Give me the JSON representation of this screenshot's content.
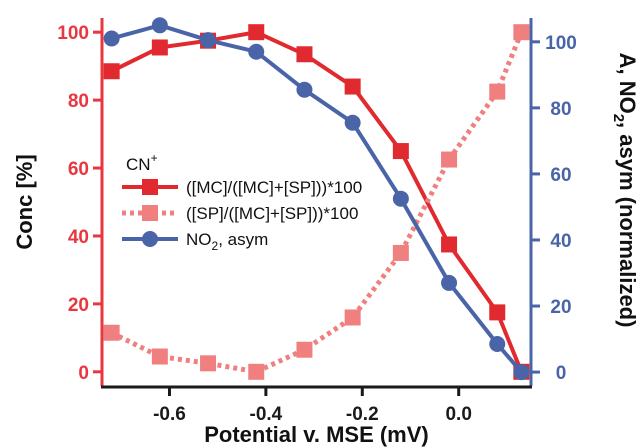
{
  "chart_data": {
    "type": "line",
    "title": "",
    "xlabel": "Potential v. MSE (mV)",
    "ylabel_left": "Conc [%]",
    "ylabel_right_parts": [
      "A, NO",
      "2",
      ", asym (normalized)"
    ],
    "xlim": [
      -0.74,
      0.15
    ],
    "ylim_left": [
      -3,
      103
    ],
    "ylim_right": [
      -3,
      106
    ],
    "x_ticks": [
      -0.6,
      -0.4,
      -0.2,
      0.0
    ],
    "x_tick_labels": [
      "-0.6",
      "-0.4",
      "-0.2",
      "0.0"
    ],
    "y_left_ticks": [
      0,
      20,
      40,
      60,
      80,
      100
    ],
    "y_left_tick_labels": [
      "0",
      "20",
      "40",
      "60",
      "80",
      "100"
    ],
    "y_right_ticks": [
      0,
      20,
      40,
      60,
      80,
      100
    ],
    "y_right_tick_labels": [
      "0",
      "20",
      "40",
      "60",
      "80",
      "100"
    ],
    "grid": false,
    "legend": {
      "placement": "center-left",
      "title": "CN",
      "title_sup": "+"
    },
    "colors": {
      "left_axis": "#e8373f",
      "right_axis": "#4a64a8",
      "mc": "#e02a2f",
      "sp": "#f08080",
      "no2": "#4a64a8"
    },
    "series": [
      {
        "name": "([MC]/([MC]+[SP]))*100",
        "legend_parts": [
          "([MC]/([MC]+[SP]))*100"
        ],
        "axis": "left",
        "style": "solid",
        "marker": "square",
        "color": "#e02a2f",
        "x": [
          -0.72,
          -0.62,
          -0.52,
          -0.42,
          -0.32,
          -0.22,
          -0.12,
          -0.02,
          0.08,
          0.13
        ],
        "values": [
          88.5,
          95.5,
          97.5,
          100,
          93.5,
          84,
          65,
          37.5,
          17.5,
          0
        ]
      },
      {
        "name": "([SP]/([MC]+[SP]))*100",
        "legend_parts": [
          "([SP]/([MC]+[SP]))*100"
        ],
        "axis": "left",
        "style": "dotted",
        "marker": "square",
        "color": "#f08080",
        "x": [
          -0.72,
          -0.62,
          -0.52,
          -0.42,
          -0.32,
          -0.22,
          -0.12,
          -0.02,
          0.08,
          0.13
        ],
        "values": [
          11.5,
          4.5,
          2.5,
          0,
          6.5,
          16,
          35,
          62.5,
          82.5,
          100
        ]
      },
      {
        "name": "NO2, asym",
        "legend_parts": [
          "NO",
          "2",
          ", asym"
        ],
        "axis": "right",
        "style": "solid",
        "marker": "circle",
        "color": "#4a64a8",
        "x": [
          -0.72,
          -0.62,
          -0.52,
          -0.42,
          -0.32,
          -0.22,
          -0.12,
          -0.02,
          0.08,
          0.13
        ],
        "values": [
          101,
          105,
          100.5,
          97,
          85.5,
          75.5,
          52.5,
          27,
          8.5,
          0
        ]
      }
    ]
  }
}
